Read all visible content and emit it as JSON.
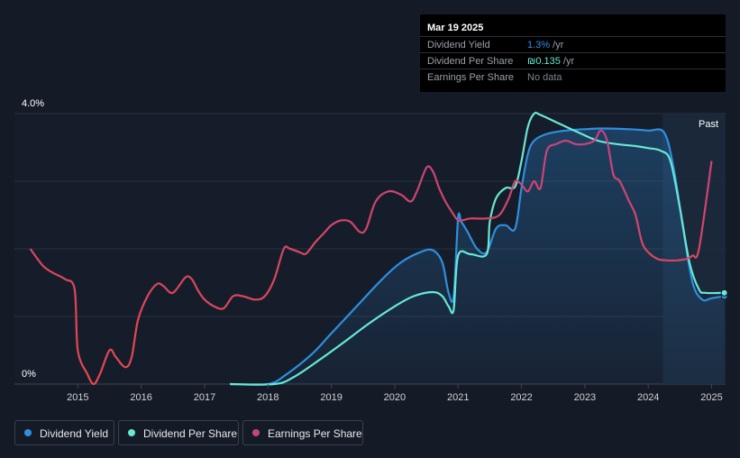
{
  "colors": {
    "dividend_yield": "#2e8fe0",
    "dividend_per_share": "#67e8d4",
    "eps_low": "#e8474f",
    "eps_high": "#c7437f",
    "background": "#151b26"
  },
  "tooltip": {
    "date": "Mar 19 2025",
    "rows": [
      {
        "label": "Dividend Yield",
        "value": "1.3%",
        "unit": " /yr",
        "color": "#2e8fe0"
      },
      {
        "label": "Dividend Per Share",
        "value": "₪0.135",
        "unit": " /yr",
        "color": "#67e8d4"
      },
      {
        "label": "Earnings Per Share",
        "value": "No data",
        "unit": "",
        "color": "#7d838c"
      }
    ]
  },
  "legend": [
    {
      "label": "Dividend Yield",
      "color": "#2e8fe0"
    },
    {
      "label": "Dividend Per Share",
      "color": "#67e8d4"
    },
    {
      "label": "Earnings Per Share",
      "color": "#c7437f"
    }
  ],
  "chart_data": {
    "type": "line",
    "past_label": "Past",
    "y_tick_labels": [
      "4.0%",
      "0%"
    ],
    "ylim": [
      0,
      4.0
    ],
    "xlim": [
      2014.0,
      2025.22
    ],
    "x_ticks": [
      2015,
      2016,
      2017,
      2018,
      2019,
      2020,
      2021,
      2022,
      2023,
      2024,
      2025
    ],
    "forecast_start": 2024.23,
    "series": [
      {
        "name": "Dividend Yield",
        "color": "#2e8fe0",
        "fill": true,
        "x": [
          2017.4,
          2018.0,
          2018.3,
          2018.7,
          2019.0,
          2019.4,
          2019.8,
          2020.1,
          2020.4,
          2020.6,
          2020.75,
          2020.85,
          2020.93,
          2021.0,
          2021.05,
          2021.15,
          2021.3,
          2021.45,
          2021.6,
          2021.75,
          2021.9,
          2022.0,
          2022.1,
          2022.2,
          2022.4,
          2022.7,
          2023.0,
          2023.3,
          2023.7,
          2024.0,
          2024.25,
          2024.4,
          2024.55,
          2024.7,
          2024.85,
          2025.0,
          2025.2
        ],
        "values": [
          0,
          0.0,
          0.15,
          0.45,
          0.75,
          1.15,
          1.55,
          1.8,
          1.95,
          1.98,
          1.8,
          1.35,
          1.3,
          2.45,
          2.4,
          2.25,
          2.0,
          1.95,
          2.3,
          2.35,
          2.3,
          2.9,
          3.4,
          3.6,
          3.7,
          3.75,
          3.77,
          3.78,
          3.77,
          3.75,
          3.72,
          3.2,
          2.3,
          1.5,
          1.25,
          1.27,
          1.3
        ]
      },
      {
        "name": "Dividend Per Share",
        "color": "#67e8d4",
        "fill": false,
        "x": [
          2017.4,
          2018.1,
          2018.4,
          2018.8,
          2019.2,
          2019.6,
          2020.0,
          2020.3,
          2020.6,
          2020.75,
          2020.85,
          2020.93,
          2021.0,
          2021.2,
          2021.45,
          2021.5,
          2021.6,
          2021.75,
          2021.9,
          2022.0,
          2022.1,
          2022.2,
          2022.3,
          2022.6,
          2022.9,
          2023.2,
          2023.5,
          2023.8,
          2024.0,
          2024.2,
          2024.35,
          2024.5,
          2024.65,
          2024.8,
          2024.9,
          2025.2
        ],
        "values": [
          0,
          0.0,
          0.1,
          0.35,
          0.62,
          0.9,
          1.15,
          1.3,
          1.36,
          1.3,
          1.15,
          1.1,
          1.9,
          1.92,
          1.92,
          2.4,
          2.75,
          2.9,
          2.92,
          3.3,
          3.8,
          4.0,
          3.98,
          3.85,
          3.72,
          3.6,
          3.55,
          3.52,
          3.49,
          3.45,
          3.3,
          2.6,
          1.8,
          1.4,
          1.35,
          1.35
        ]
      },
      {
        "name": "Earnings Per Share",
        "color": "#c7437f",
        "fill": false,
        "x": [
          2014.25,
          2014.45,
          2014.6,
          2014.8,
          2014.95,
          2015.0,
          2015.15,
          2015.25,
          2015.35,
          2015.5,
          2015.6,
          2015.75,
          2015.85,
          2015.95,
          2016.1,
          2016.25,
          2016.35,
          2016.5,
          2016.7,
          2016.8,
          2016.9,
          2017.0,
          2017.15,
          2017.3,
          2017.45,
          2017.6,
          2017.8,
          2017.95,
          2018.1,
          2018.25,
          2018.35,
          2018.5,
          2018.6,
          2018.75,
          2018.9,
          2019.0,
          2019.15,
          2019.3,
          2019.45,
          2019.55,
          2019.7,
          2019.9,
          2020.1,
          2020.25,
          2020.35,
          2020.5,
          2020.6,
          2020.7,
          2020.8,
          2020.9,
          2021.0,
          2021.1,
          2021.2,
          2021.45,
          2021.65,
          2021.8,
          2021.9,
          2022.0,
          2022.1,
          2022.2,
          2022.3,
          2022.4,
          2022.55,
          2022.7,
          2022.85,
          2023.0,
          2023.15,
          2023.25,
          2023.35,
          2023.45,
          2023.55,
          2023.7,
          2023.8,
          2023.9,
          2024.0,
          2024.15,
          2024.3,
          2024.45,
          2024.6,
          2024.7,
          2024.8,
          2025.0
        ],
        "values": [
          2.0,
          1.75,
          1.65,
          1.55,
          1.4,
          0.5,
          0.15,
          0.0,
          0.15,
          0.5,
          0.4,
          0.25,
          0.4,
          0.95,
          1.3,
          1.48,
          1.45,
          1.35,
          1.58,
          1.55,
          1.38,
          1.25,
          1.15,
          1.12,
          1.3,
          1.3,
          1.25,
          1.3,
          1.55,
          2.0,
          2.0,
          1.95,
          1.93,
          2.1,
          2.25,
          2.35,
          2.42,
          2.4,
          2.25,
          2.3,
          2.7,
          2.85,
          2.8,
          2.7,
          2.85,
          3.2,
          3.15,
          2.9,
          2.7,
          2.55,
          2.42,
          2.43,
          2.45,
          2.45,
          2.5,
          2.75,
          3.0,
          2.95,
          2.85,
          3.0,
          2.9,
          3.45,
          3.55,
          3.6,
          3.55,
          3.55,
          3.6,
          3.75,
          3.6,
          3.1,
          3.0,
          2.7,
          2.5,
          2.1,
          1.95,
          1.85,
          1.83,
          1.83,
          1.85,
          1.9,
          2.0,
          3.3
        ]
      }
    ]
  }
}
